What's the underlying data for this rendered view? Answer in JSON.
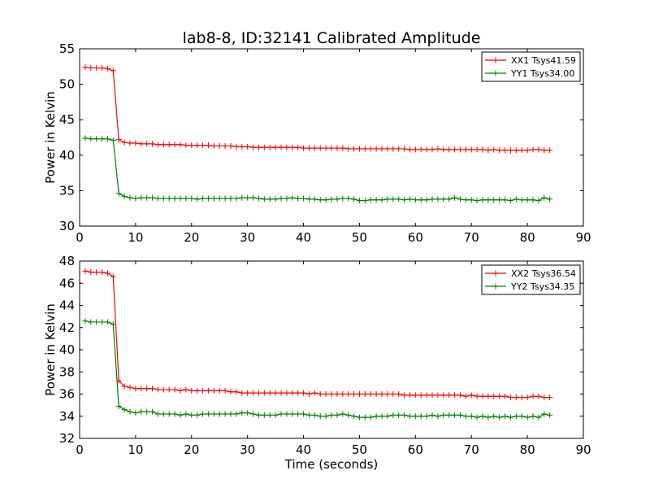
{
  "chart_data": [
    {
      "type": "line",
      "title": "lab8-8, ID:32141 Calibrated Amplitude",
      "xlabel": "",
      "ylabel": "Power in Kelvin",
      "xlim": [
        0,
        90
      ],
      "ylim": [
        30,
        55
      ],
      "xticks": [
        "0",
        "10",
        "20",
        "30",
        "40",
        "50",
        "60",
        "70",
        "80",
        "90"
      ],
      "yticks": [
        "30",
        "35",
        "40",
        "45",
        "50",
        "55"
      ],
      "legend_position": "top-right",
      "grid": false,
      "series": [
        {
          "name": "XX1 Tsys41.59",
          "color": "#ff0000",
          "x": [
            1,
            2,
            3,
            4,
            5,
            6,
            7,
            8,
            9,
            10,
            11,
            12,
            13,
            14,
            15,
            16,
            17,
            18,
            19,
            20,
            21,
            22,
            23,
            24,
            25,
            26,
            27,
            28,
            29,
            30,
            31,
            32,
            33,
            34,
            35,
            36,
            37,
            38,
            39,
            40,
            41,
            42,
            43,
            44,
            45,
            46,
            47,
            48,
            49,
            50,
            51,
            52,
            53,
            54,
            55,
            56,
            57,
            58,
            59,
            60,
            61,
            62,
            63,
            64,
            65,
            66,
            67,
            68,
            69,
            70,
            71,
            72,
            73,
            74,
            75,
            76,
            77,
            78,
            79,
            80,
            81,
            82,
            83,
            84
          ],
          "values": [
            52.4,
            52.3,
            52.3,
            52.3,
            52.2,
            51.9,
            42.2,
            41.8,
            41.7,
            41.7,
            41.6,
            41.6,
            41.6,
            41.5,
            41.5,
            41.5,
            41.5,
            41.5,
            41.4,
            41.4,
            41.4,
            41.4,
            41.4,
            41.3,
            41.3,
            41.3,
            41.3,
            41.2,
            41.2,
            41.2,
            41.1,
            41.1,
            41.1,
            41.1,
            41.1,
            41.1,
            41.1,
            41.1,
            41.1,
            41.0,
            41.0,
            41.0,
            41.0,
            41.0,
            41.0,
            41.0,
            41.0,
            40.9,
            40.9,
            40.9,
            40.9,
            40.9,
            40.9,
            40.9,
            40.9,
            40.9,
            40.9,
            40.9,
            40.8,
            40.8,
            40.8,
            40.8,
            40.8,
            40.9,
            40.8,
            40.8,
            40.8,
            40.8,
            40.8,
            40.8,
            40.8,
            40.8,
            40.7,
            40.8,
            40.7,
            40.7,
            40.7,
            40.7,
            40.7,
            40.7,
            40.8,
            40.8,
            40.7,
            40.7
          ]
        },
        {
          "name": "YY1 Tsys34.00",
          "color": "#008000",
          "x": [
            1,
            2,
            3,
            4,
            5,
            6,
            7,
            8,
            9,
            10,
            11,
            12,
            13,
            14,
            15,
            16,
            17,
            18,
            19,
            20,
            21,
            22,
            23,
            24,
            25,
            26,
            27,
            28,
            29,
            30,
            31,
            32,
            33,
            34,
            35,
            36,
            37,
            38,
            39,
            40,
            41,
            42,
            43,
            44,
            45,
            46,
            47,
            48,
            49,
            50,
            51,
            52,
            53,
            54,
            55,
            56,
            57,
            58,
            59,
            60,
            61,
            62,
            63,
            64,
            65,
            66,
            67,
            68,
            69,
            70,
            71,
            72,
            73,
            74,
            75,
            76,
            77,
            78,
            79,
            80,
            81,
            82,
            83,
            84
          ],
          "values": [
            42.4,
            42.3,
            42.3,
            42.3,
            42.3,
            42.1,
            34.6,
            34.2,
            34.0,
            33.9,
            34.0,
            34.0,
            34.0,
            33.9,
            33.9,
            33.9,
            33.9,
            33.9,
            33.9,
            33.9,
            33.8,
            33.9,
            33.9,
            33.9,
            33.9,
            33.9,
            33.9,
            33.9,
            34.0,
            34.0,
            34.0,
            33.9,
            33.8,
            33.8,
            33.8,
            33.9,
            33.9,
            34.0,
            33.9,
            33.9,
            33.8,
            33.8,
            33.7,
            33.7,
            33.8,
            33.8,
            33.9,
            33.9,
            33.8,
            33.6,
            33.6,
            33.7,
            33.7,
            33.7,
            33.8,
            33.8,
            33.8,
            33.7,
            33.8,
            33.7,
            33.7,
            33.7,
            33.8,
            33.8,
            33.8,
            33.8,
            34.0,
            33.8,
            33.7,
            33.7,
            33.6,
            33.7,
            33.7,
            33.7,
            33.7,
            33.7,
            33.6,
            33.8,
            33.7,
            33.7,
            33.7,
            33.6,
            34.0,
            33.8
          ]
        }
      ]
    },
    {
      "type": "line",
      "title": "",
      "xlabel": "Time (seconds)",
      "ylabel": "Power in Kelvin",
      "xlim": [
        0,
        90
      ],
      "ylim": [
        32,
        48
      ],
      "xticks": [
        "0",
        "10",
        "20",
        "30",
        "40",
        "50",
        "60",
        "70",
        "80",
        "90"
      ],
      "yticks": [
        "32",
        "34",
        "36",
        "38",
        "40",
        "42",
        "44",
        "46",
        "48"
      ],
      "legend_position": "top-right",
      "grid": false,
      "series": [
        {
          "name": "XX2 Tsys36.54",
          "color": "#ff0000",
          "x": [
            1,
            2,
            3,
            4,
            5,
            6,
            7,
            8,
            9,
            10,
            11,
            12,
            13,
            14,
            15,
            16,
            17,
            18,
            19,
            20,
            21,
            22,
            23,
            24,
            25,
            26,
            27,
            28,
            29,
            30,
            31,
            32,
            33,
            34,
            35,
            36,
            37,
            38,
            39,
            40,
            41,
            42,
            43,
            44,
            45,
            46,
            47,
            48,
            49,
            50,
            51,
            52,
            53,
            54,
            55,
            56,
            57,
            58,
            59,
            60,
            61,
            62,
            63,
            64,
            65,
            66,
            67,
            68,
            69,
            70,
            71,
            72,
            73,
            74,
            75,
            76,
            77,
            78,
            79,
            80,
            81,
            82,
            83,
            84
          ],
          "values": [
            47.1,
            47.0,
            47.0,
            47.0,
            46.9,
            46.6,
            37.2,
            36.7,
            36.6,
            36.5,
            36.5,
            36.5,
            36.5,
            36.4,
            36.4,
            36.4,
            36.4,
            36.3,
            36.4,
            36.3,
            36.3,
            36.3,
            36.3,
            36.3,
            36.3,
            36.3,
            36.2,
            36.2,
            36.1,
            36.1,
            36.1,
            36.1,
            36.1,
            36.1,
            36.1,
            36.1,
            36.1,
            36.1,
            36.1,
            36.1,
            36.0,
            36.1,
            36.0,
            36.0,
            36.0,
            36.0,
            36.0,
            36.0,
            36.0,
            36.0,
            36.0,
            36.0,
            36.0,
            36.0,
            36.0,
            36.0,
            36.0,
            35.9,
            35.9,
            35.9,
            35.9,
            35.9,
            35.9,
            35.9,
            35.9,
            35.9,
            35.9,
            35.9,
            35.8,
            35.9,
            35.8,
            35.8,
            35.8,
            35.8,
            35.8,
            35.8,
            35.7,
            35.7,
            35.7,
            35.7,
            35.8,
            35.8,
            35.7,
            35.7
          ]
        },
        {
          "name": "YY2 Tsys34.35",
          "color": "#008000",
          "x": [
            1,
            2,
            3,
            4,
            5,
            6,
            7,
            8,
            9,
            10,
            11,
            12,
            13,
            14,
            15,
            16,
            17,
            18,
            19,
            20,
            21,
            22,
            23,
            24,
            25,
            26,
            27,
            28,
            29,
            30,
            31,
            32,
            33,
            34,
            35,
            36,
            37,
            38,
            39,
            40,
            41,
            42,
            43,
            44,
            45,
            46,
            47,
            48,
            49,
            50,
            51,
            52,
            53,
            54,
            55,
            56,
            57,
            58,
            59,
            60,
            61,
            62,
            63,
            64,
            65,
            66,
            67,
            68,
            69,
            70,
            71,
            72,
            73,
            74,
            75,
            76,
            77,
            78,
            79,
            80,
            81,
            82,
            83,
            84
          ],
          "values": [
            42.6,
            42.5,
            42.5,
            42.5,
            42.5,
            42.3,
            34.9,
            34.6,
            34.4,
            34.3,
            34.4,
            34.4,
            34.4,
            34.2,
            34.2,
            34.2,
            34.2,
            34.1,
            34.2,
            34.1,
            34.1,
            34.2,
            34.2,
            34.2,
            34.2,
            34.2,
            34.2,
            34.2,
            34.3,
            34.3,
            34.2,
            34.1,
            34.1,
            34.1,
            34.1,
            34.2,
            34.2,
            34.2,
            34.2,
            34.2,
            34.1,
            34.1,
            34.0,
            34.0,
            34.1,
            34.1,
            34.2,
            34.1,
            34.0,
            33.9,
            33.9,
            33.9,
            34.0,
            34.0,
            34.0,
            34.1,
            34.1,
            34.1,
            34.0,
            34.0,
            34.0,
            34.0,
            34.1,
            34.0,
            34.1,
            34.1,
            34.1,
            34.1,
            34.0,
            34.0,
            33.9,
            34.0,
            33.9,
            34.0,
            33.9,
            34.0,
            33.9,
            34.0,
            34.0,
            33.9,
            34.0,
            33.9,
            34.2,
            34.1
          ]
        }
      ]
    }
  ]
}
